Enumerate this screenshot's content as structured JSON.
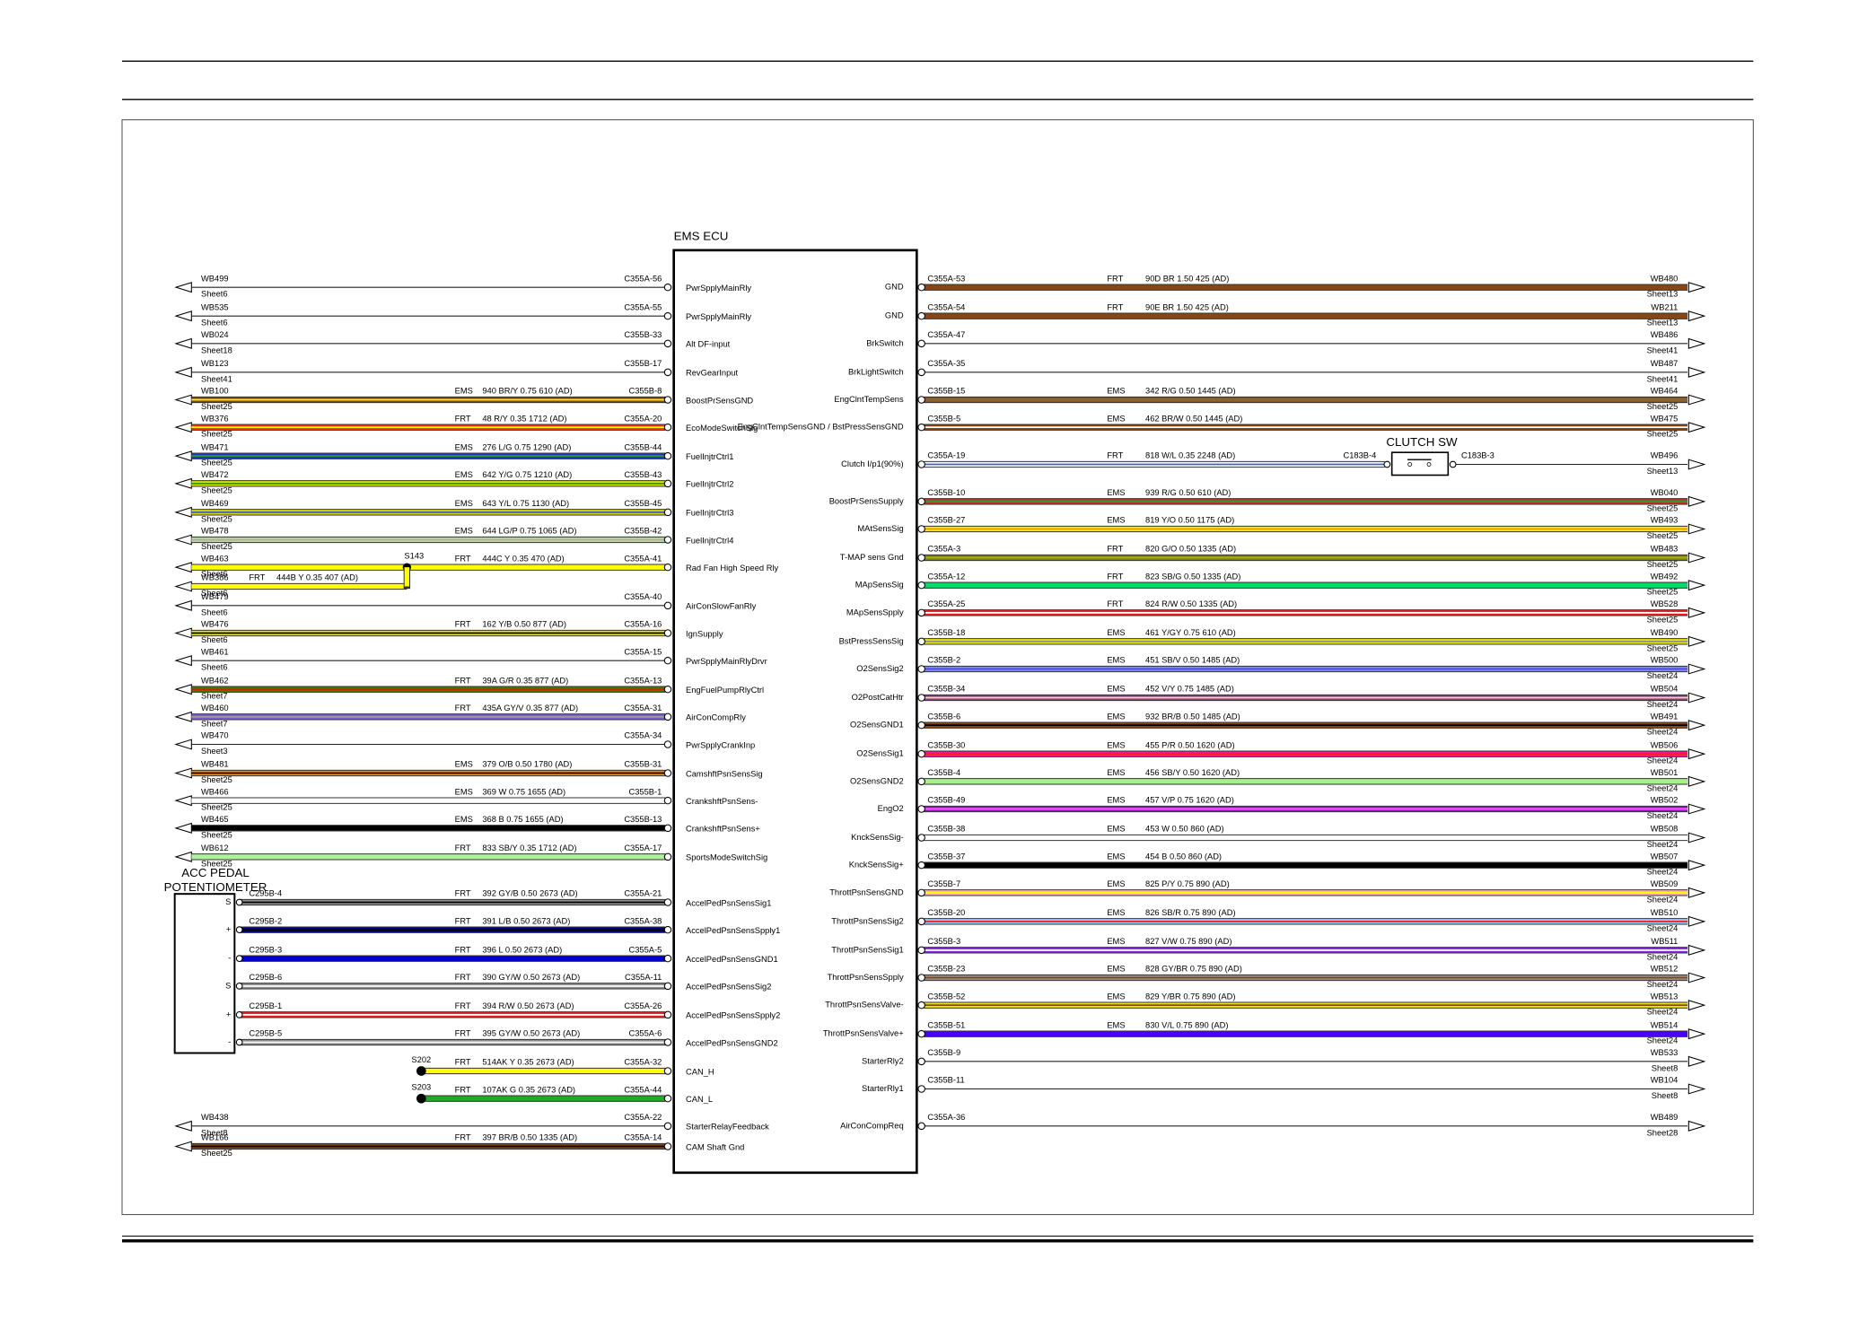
{
  "header": {
    "title": "EMS ECU"
  },
  "acc_pedal": {
    "label_1": "ACC PEDAL",
    "label_2": "POTENTIOMETER"
  },
  "left": [
    {
      "conn": "WB499",
      "sheet": "Sheet6",
      "pin": "C355A-56",
      "signal": "PwrSpplyMainRly"
    },
    {
      "conn": "WB535",
      "sheet": "Sheet6",
      "pin": "C355A-55",
      "signal": "PwrSpplyMainRly"
    },
    {
      "conn": "WB024",
      "sheet": "Sheet18",
      "pin": "C355B-33",
      "signal": "Alt DF-input"
    },
    {
      "conn": "WB123",
      "sheet": "Sheet41",
      "pin": "C355B-17",
      "signal": "RevGearInput"
    },
    {
      "conn": "WB100",
      "sheet": "Sheet25",
      "harness": "EMS",
      "spec": "940 BR/Y 0.75 610 (AD)",
      "pin": "C355B-8",
      "signal": "BoostPrSensGND",
      "color": "#8b4513",
      "stripe": "#ffff00"
    },
    {
      "conn": "WB376",
      "sheet": "Sheet25",
      "harness": "FRT",
      "spec": "48 R/Y 0.35 1712 (AD)",
      "pin": "C355A-20",
      "signal": "EcoModeSwitchSig",
      "color": "#ff3300",
      "stripe": "#ffff00"
    },
    {
      "conn": "WB471",
      "sheet": "Sheet25",
      "harness": "EMS",
      "spec": "276 L/G 0.75 1290 (AD)",
      "pin": "C355B-44",
      "signal": "FuelInjtrCtrl1",
      "color": "#1a3cbf",
      "stripe": "#2e9a2e"
    },
    {
      "conn": "WB472",
      "sheet": "Sheet25",
      "harness": "EMS",
      "spec": "642 Y/G 0.75 1210 (AD)",
      "pin": "C355B-43",
      "signal": "FuelInjtrCtrl2",
      "color": "#d8e000",
      "stripe": "#3a9a00"
    },
    {
      "conn": "WB469",
      "sheet": "Sheet25",
      "harness": "EMS",
      "spec": "643 Y/L 0.75 1130 (AD)",
      "pin": "C355B-45",
      "signal": "FuelInjtrCtrl3",
      "color": "#d8d800",
      "stripe": "#4060c0"
    },
    {
      "conn": "WB478",
      "sheet": "Sheet25",
      "harness": "EMS",
      "spec": "644 LG/P 0.75 1065 (AD)",
      "pin": "C355B-42",
      "signal": "FuelInjtrCtrl4",
      "color": "#90ee90",
      "stripe": "#ff80c0"
    },
    {
      "conn": "WB463",
      "sheet": "Sheet6",
      "splice": "S143",
      "harness": "FRT",
      "spec": "444C Y 0.35 470 (AD)",
      "pin": "C355A-41",
      "signal": "Rad Fan High Speed Rly",
      "color": "#ffff00"
    },
    {
      "conn": "WB386",
      "sheet": "Sheet6",
      "harness": "FRT",
      "spec": "444B Y 0.35 407 (AD)",
      "color": "#ffff00"
    },
    {
      "conn": "WB479",
      "sheet": "Sheet6",
      "pin": "C355A-40",
      "signal": "AirConSlowFanRly"
    },
    {
      "conn": "WB476",
      "sheet": "Sheet6",
      "harness": "FRT",
      "spec": "162 Y/B 0.50 877 (AD)",
      "pin": "C355A-16",
      "signal": "IgnSupply",
      "color": "#e8e800",
      "stripe": "#000000"
    },
    {
      "conn": "WB461",
      "sheet": "Sheet6",
      "pin": "C355A-15",
      "signal": "PwrSpplyMainRlyDrvr"
    },
    {
      "conn": "WB462",
      "sheet": "Sheet7",
      "harness": "FRT",
      "spec": "39A G/R 0.35 877 (AD)",
      "pin": "C355A-13",
      "signal": "EngFuelPumpRlyCtrl",
      "color": "#4a7a00",
      "stripe": "#cc2200"
    },
    {
      "conn": "WB460",
      "sheet": "Sheet7",
      "harness": "FRT",
      "spec": "435A GY/V 0.35 877 (AD)",
      "pin": "C355A-31",
      "signal": "AirConCompRly",
      "color": "#8060d0",
      "stripe": "#9a9a9a"
    },
    {
      "conn": "WB470",
      "sheet": "Sheet3",
      "pin": "C355A-34",
      "signal": "PwrSpplyCrankInp"
    },
    {
      "conn": "WB481",
      "sheet": "Sheet25",
      "harness": "EMS",
      "spec": "379 O/B 0.50 1780 (AD)",
      "pin": "C355B-31",
      "signal": "CamshftPsnSensSig",
      "color": "#ff8c00",
      "stripe": "#000000"
    },
    {
      "conn": "WB466",
      "sheet": "Sheet25",
      "harness": "EMS",
      "spec": "369 W 0.75 1655 (AD)",
      "pin": "C355B-1",
      "signal": "CrankshftPsnSens-",
      "color": "#ffffff"
    },
    {
      "conn": "WB465",
      "sheet": "Sheet25",
      "harness": "EMS",
      "spec": "368 B 0.75 1655 (AD)",
      "pin": "C355B-13",
      "signal": "CrankshftPsnSens+",
      "color": "#000000"
    },
    {
      "conn": "WB612",
      "sheet": "Sheet25",
      "harness": "FRT",
      "spec": "833 SB/Y 0.35 1712 (AD)",
      "pin": "C355A-17",
      "signal": "SportsModeSwitchSig",
      "color": "#b0f0a0"
    },
    {
      "conn": "C295B-4",
      "term": "S",
      "harness": "FRT",
      "spec": "392 GY/B 0.50 2673 (AD)",
      "pin": "C355A-21",
      "signal": "AccelPedPsnSensSig1",
      "color": "#909090",
      "stripe": "#000000"
    },
    {
      "conn": "C295B-2",
      "term": "+",
      "harness": "FRT",
      "spec": "391 L/B 0.50 2673 (AD)",
      "pin": "C355A-38",
      "signal": "AccelPedPsnSensSpply1",
      "color": "#00008b",
      "stripe": "#000000"
    },
    {
      "conn": "C295B-3",
      "term": "-",
      "harness": "FRT",
      "spec": "396 L 0.50 2673 (AD)",
      "pin": "C355A-5",
      "signal": "AccelPedPsnSensGND1",
      "color": "#0000cd"
    },
    {
      "conn": "C295B-6",
      "term": "S",
      "harness": "FRT",
      "spec": "390 GY/W 0.50 2673 (AD)",
      "pin": "C355A-11",
      "signal": "AccelPedPsnSensSig2",
      "color": "#909090",
      "stripe": "#ffffff"
    },
    {
      "conn": "C295B-1",
      "term": "+",
      "harness": "FRT",
      "spec": "394 R/W 0.50 2673 (AD)",
      "pin": "C355A-26",
      "signal": "AccelPedPsnSensSpply2",
      "color": "#ee2222",
      "stripe": "#ffffff"
    },
    {
      "conn": "C295B-5",
      "term": "-",
      "harness": "FRT",
      "spec": "395 GY/W 0.50 2673 (AD)",
      "pin": "C355A-6",
      "signal": "AccelPedPsnSensGND2",
      "color": "#909090",
      "stripe": "#ffffff"
    },
    {
      "splice": "S202",
      "harness": "FRT",
      "spec": "514AK Y 0.35 2673 (AD)",
      "pin": "C355A-32",
      "signal": "CAN_H",
      "color": "#ffff00"
    },
    {
      "splice": "S203",
      "harness": "FRT",
      "spec": "107AK G 0.35 2673 (AD)",
      "pin": "C355A-44",
      "signal": "CAN_L",
      "color": "#22aa22"
    },
    {
      "conn": "WB438",
      "sheet": "Sheet8",
      "pin": "C355A-22",
      "signal": "StarterRelayFeedback"
    },
    {
      "conn": "WB166",
      "sheet": "Sheet25",
      "harness": "FRT",
      "spec": "397 BR/B 0.50 1335 (AD)",
      "pin": "C355A-14",
      "signal": "CAM Shaft Gnd",
      "color": "#8b4513",
      "stripe": "#000000"
    }
  ],
  "right": [
    {
      "signal": "GND",
      "pin": "C355A-53",
      "harness": "FRT",
      "spec": "90D BR 1.50 425 (AD)",
      "conn": "WB480",
      "sheet": "Sheet13",
      "color": "#8b4513"
    },
    {
      "signal": "GND",
      "pin": "C355A-54",
      "harness": "FRT",
      "spec": "90E BR 1.50 425 (AD)",
      "conn": "WB211",
      "sheet": "Sheet13",
      "color": "#8b4513"
    },
    {
      "signal": "BrkSwitch",
      "pin": "C355A-47",
      "conn": "WB486",
      "sheet": "Sheet41"
    },
    {
      "signal": "BrkLightSwitch",
      "pin": "C355A-35",
      "conn": "WB487",
      "sheet": "Sheet41"
    },
    {
      "signal": "EngClntTempSens",
      "pin": "C355B-15",
      "harness": "EMS",
      "spec": "342 R/G 0.50 1445 (AD)",
      "conn": "WB464",
      "sheet": "Sheet25",
      "color": "#c0392b",
      "stripe": "#2e9a2e"
    },
    {
      "signal": "EngClntTempSensGND / BstPressSensGND",
      "pin": "C355B-5",
      "harness": "EMS",
      "spec": "462 BR/W 0.50 1445 (AD)",
      "conn": "WB475",
      "sheet": "Sheet25",
      "color": "#8b4513",
      "stripe": "#ffffff"
    },
    {
      "signal": "Clutch I/p1(90%)",
      "pin": "C355A-19",
      "harness": "FRT",
      "spec": "818 W/L 0.35 2248 (AD)",
      "conn": "WB496",
      "sheet": "Sheet13",
      "color": "#ffffff",
      "stripe": "#4060c0",
      "switch": {
        "label": "CLUTCH SW",
        "pin_in": "C183B-4",
        "pin_out": "C183B-3"
      }
    },
    {
      "signal": "BoostPrSensSupply",
      "pin": "C355B-10",
      "harness": "EMS",
      "spec": "939 R/G 0.50 610 (AD)",
      "conn": "WB040",
      "sheet": "Sheet25",
      "color": "#c0392b",
      "stripe": "#2e9a2e"
    },
    {
      "signal": "MAtSensSig",
      "pin": "C355B-27",
      "harness": "EMS",
      "spec": "819 Y/O 0.50 1175 (AD)",
      "conn": "WB493",
      "sheet": "Sheet25",
      "color": "#ffee00",
      "stripe": "#ff8c00"
    },
    {
      "signal": "T-MAP sens Gnd",
      "pin": "C355A-3",
      "harness": "FRT",
      "spec": "820 G/O 0.50 1335 (AD)",
      "conn": "WB483",
      "sheet": "Sheet25",
      "color": "#4a9a00",
      "stripe": "#ff8c00"
    },
    {
      "signal": "MApSensSig",
      "pin": "C355A-12",
      "harness": "FRT",
      "spec": "823 SB/G 0.50 1335 (AD)",
      "conn": "WB492",
      "sheet": "Sheet25",
      "color": "#00dd66"
    },
    {
      "signal": "MApSensSpply",
      "pin": "C355A-25",
      "harness": "FRT",
      "spec": "824 R/W 0.50 1335 (AD)",
      "conn": "WB528",
      "sheet": "Sheet25",
      "color": "#ee2222",
      "stripe": "#ffffff"
    },
    {
      "signal": "BstPressSensSig",
      "pin": "C355B-18",
      "harness": "EMS",
      "spec": "461 Y/GY 0.75 610 (AD)",
      "conn": "WB490",
      "sheet": "Sheet25",
      "color": "#e8e800",
      "stripe": "#909090"
    },
    {
      "signal": "O2SensSig2",
      "pin": "C355B-2",
      "harness": "EMS",
      "spec": "451 SB/V 0.50 1485 (AD)",
      "conn": "WB500",
      "sheet": "Sheet24",
      "color": "#6699ff",
      "stripe": "#8a2be2"
    },
    {
      "signal": "O2PostCatHtr",
      "pin": "C355B-34",
      "harness": "EMS",
      "spec": "452 V/Y 0.75 1485 (AD)",
      "conn": "WB504",
      "sheet": "Sheet24",
      "color": "#8a2be2",
      "stripe": "#ffff00"
    },
    {
      "signal": "O2SensGND1",
      "pin": "C355B-6",
      "harness": "EMS",
      "spec": "932 BR/B 0.50 1485 (AD)",
      "conn": "WB491",
      "sheet": "Sheet24",
      "color": "#8b4513",
      "stripe": "#000000"
    },
    {
      "signal": "O2SensSig1",
      "pin": "C355B-30",
      "harness": "EMS",
      "spec": "455 P/R 0.50 1620 (AD)",
      "conn": "WB506",
      "sheet": "Sheet24",
      "color": "#ff1493",
      "stripe": "#ee2222"
    },
    {
      "signal": "O2SensGND2",
      "pin": "C355B-4",
      "harness": "EMS",
      "spec": "456 SB/Y 0.50 1620 (AD)",
      "conn": "WB501",
      "sheet": "Sheet24",
      "color": "#a8f08a"
    },
    {
      "signal": "EngO2",
      "pin": "C355B-49",
      "harness": "EMS",
      "spec": "457 V/P 0.75 1620 (AD)",
      "conn": "WB502",
      "sheet": "Sheet24",
      "color": "#aa00ff",
      "stripe": "#ff80c0"
    },
    {
      "signal": "KnckSensSig-",
      "pin": "C355B-38",
      "harness": "EMS",
      "spec": "453 W 0.50 860 (AD)",
      "conn": "WB508",
      "sheet": "Sheet24",
      "color": "#ffffff"
    },
    {
      "signal": "KnckSensSig+",
      "pin": "C355B-37",
      "harness": "EMS",
      "spec": "454 B 0.50 860 (AD)",
      "conn": "WB507",
      "sheet": "Sheet24",
      "color": "#000000"
    },
    {
      "signal": "ThrottPsnSensGND",
      "pin": "C355B-7",
      "harness": "EMS",
      "spec": "825 P/Y 0.75 890 (AD)",
      "conn": "WB509",
      "sheet": "Sheet24",
      "color": "#ffb0b0",
      "stripe": "#ffff00"
    },
    {
      "signal": "ThrottPsnSensSig2",
      "pin": "C355B-20",
      "harness": "EMS",
      "spec": "826 SB/R 0.75 890 (AD)",
      "conn": "WB510",
      "sheet": "Sheet24",
      "color": "#99ccff",
      "stripe": "#ee2222"
    },
    {
      "signal": "ThrottPsnSensSig1",
      "pin": "C355B-3",
      "harness": "EMS",
      "spec": "827 V/W 0.75 890 (AD)",
      "conn": "WB511",
      "sheet": "Sheet24",
      "color": "#8a2be2",
      "stripe": "#ffffff"
    },
    {
      "signal": "ThrottPsnSensSpply",
      "pin": "C355B-23",
      "harness": "EMS",
      "spec": "828 GY/BR 0.75 890 (AD)",
      "conn": "WB512",
      "sheet": "Sheet24",
      "color": "#909090",
      "stripe": "#8b4513"
    },
    {
      "signal": "ThrottPsnSensValve-",
      "pin": "C355B-52",
      "harness": "EMS",
      "spec": "829 Y/BR 0.75 890 (AD)",
      "conn": "WB513",
      "sheet": "Sheet24",
      "color": "#e8e800",
      "stripe": "#8b4513"
    },
    {
      "signal": "ThrottPsnSensValve+",
      "pin": "C355B-51",
      "harness": "EMS",
      "spec": "830 V/L 0.75 890 (AD)",
      "conn": "WB514",
      "sheet": "Sheet24",
      "color": "#4b00ff"
    },
    {
      "signal": "StarterRly2",
      "pin": "C355B-9",
      "conn": "WB533",
      "sheet": "Sheet8"
    },
    {
      "signal": "StarterRly1",
      "pin": "C355B-11",
      "conn": "WB104",
      "sheet": "Sheet8"
    },
    {
      "signal": "AirConCompReq",
      "pin": "C355A-36",
      "conn": "WB489",
      "sheet": "Sheet28"
    }
  ]
}
